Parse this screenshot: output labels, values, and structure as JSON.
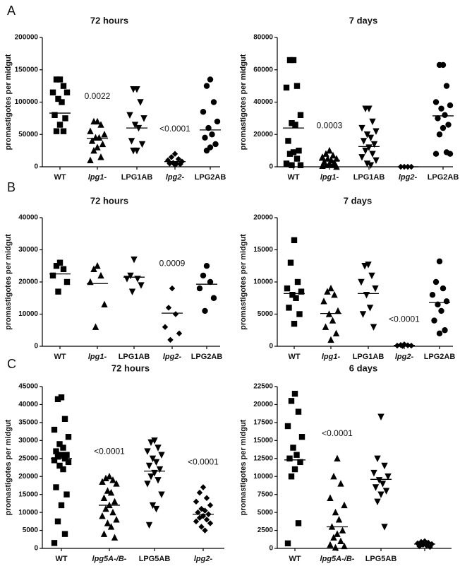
{
  "chart_data": [
    {
      "type": "dot",
      "panel_label": "A",
      "title": "72 hours",
      "y_label": "promastigotes per midgut",
      "color": "#000000",
      "categories": [
        "WT",
        "lpg1-",
        "LPG1AB",
        "lpg2-",
        "LPG2AB"
      ],
      "markers": [
        "square",
        "triangle-up",
        "triangle-down",
        "diamond",
        "circle"
      ],
      "values": [
        [
          135000,
          135000,
          125000,
          115000,
          115000,
          105000,
          100000,
          80000,
          75000,
          65000,
          55000,
          55000
        ],
        [
          70000,
          70000,
          65000,
          55000,
          50000,
          45000,
          45000,
          40000,
          35000,
          30000,
          25000,
          15000,
          10000
        ],
        [
          120000,
          120000,
          100000,
          80000,
          75000,
          65000,
          60000,
          40000,
          35000,
          25000,
          25000
        ],
        [
          20000,
          15000,
          12000,
          10000,
          8000,
          6000,
          5000,
          5000,
          4000,
          3000
        ],
        [
          135000,
          125000,
          100000,
          85000,
          70000,
          60000,
          50000,
          45000,
          35000,
          30000,
          25000
        ]
      ],
      "means": [
        83000,
        44000,
        60000,
        8000,
        57000
      ],
      "p_values": [
        null,
        "0.0022",
        null,
        "<0.0001",
        null
      ],
      "ylim": [
        0,
        200000
      ],
      "yticks": [
        0,
        50000,
        100000,
        150000,
        200000
      ]
    },
    {
      "type": "dot",
      "title": "7 days",
      "y_label": "promastigotes per midgut",
      "color": "#000000",
      "categories": [
        "WT",
        "lpg1-",
        "LPG1AB",
        "lpg2-",
        "LPG2AB"
      ],
      "markers": [
        "square",
        "triangle-up",
        "triangle-down",
        "diamond",
        "circle"
      ],
      "values": [
        [
          66000,
          66000,
          50000,
          49000,
          32000,
          27000,
          26000,
          16000,
          10000,
          9000,
          8000,
          5000,
          2000,
          1000,
          1000
        ],
        [
          10000,
          8000,
          7000,
          6000,
          5000,
          5000,
          4000,
          3000,
          2000,
          2000,
          1000,
          1000,
          500,
          0
        ],
        [
          36000,
          36000,
          28000,
          24000,
          22000,
          20000,
          18000,
          16000,
          14000,
          12000,
          10000,
          8000,
          6000,
          4000,
          2000,
          1000
        ],
        [
          0,
          0,
          0,
          0
        ],
        [
          63000,
          63000,
          50000,
          40000,
          38000,
          36000,
          32000,
          30000,
          26000,
          24000,
          20000,
          9000,
          8000,
          8000
        ]
      ],
      "means": [
        24000,
        4000,
        12500,
        0,
        31500
      ],
      "p_values": [
        null,
        "0.0003",
        null,
        null,
        null
      ],
      "ylim": [
        0,
        80000
      ],
      "yticks": [
        0,
        20000,
        40000,
        60000,
        80000
      ]
    },
    {
      "type": "dot",
      "panel_label": "B",
      "title": "72 hours",
      "y_label": "promastigotes per midgut",
      "color": "#000000",
      "categories": [
        "WT",
        "lpg1-",
        "LPG1AB",
        "lpg2-",
        "LPG2AB"
      ],
      "markers": [
        "square",
        "triangle-up",
        "triangle-down",
        "diamond",
        "circle"
      ],
      "values": [
        [
          26000,
          25000,
          24000,
          22000,
          20000,
          17000
        ],
        [
          25000,
          24000,
          22000,
          20000,
          13000,
          6000
        ],
        [
          27000,
          22000,
          21000,
          21000,
          19000,
          17000
        ],
        [
          18000,
          12000,
          10000,
          6000,
          4000,
          2000
        ],
        [
          25000,
          22000,
          20000,
          18000,
          15000,
          11000
        ]
      ],
      "means": [
        22500,
        19500,
        21500,
        10300,
        19300
      ],
      "p_values": [
        null,
        null,
        null,
        "0.0009",
        null
      ],
      "ylim": [
        0,
        40000
      ],
      "yticks": [
        0,
        10000,
        20000,
        30000,
        40000
      ]
    },
    {
      "type": "dot",
      "title": "7 days",
      "y_label": "promastigotes per midgut",
      "color": "#000000",
      "categories": [
        "WT",
        "lpg1-",
        "LPG1AB",
        "lpg2-",
        "LPG2AB"
      ],
      "markers": [
        "square",
        "triangle-up",
        "triangle-down",
        "diamond",
        "circle"
      ],
      "values": [
        [
          16500,
          13000,
          10000,
          9000,
          8500,
          8000,
          7500,
          6000,
          5000,
          3500
        ],
        [
          9000,
          8500,
          8000,
          7000,
          5500,
          5000,
          4000,
          3000,
          2000,
          1000
        ],
        [
          12700,
          12500,
          11000,
          10000,
          9000,
          8000,
          6000,
          5000,
          3000
        ],
        [
          300,
          200,
          150,
          100,
          100,
          50
        ],
        [
          13200,
          10000,
          9000,
          8000,
          7000,
          6500,
          5500,
          4000,
          2500,
          2000
        ]
      ],
      "means": [
        8200,
        5100,
        8200,
        150,
        6800
      ],
      "p_values": [
        null,
        null,
        null,
        "<0.0001",
        null
      ],
      "ylim": [
        0,
        20000
      ],
      "yticks": [
        0,
        5000,
        10000,
        15000,
        20000
      ]
    },
    {
      "type": "dot",
      "panel_label": "C",
      "title": "72 hours",
      "y_label": "promastigotes per midgut",
      "color": "#000000",
      "categories": [
        "WT",
        "lpg5A-/B-",
        "LPG5AB",
        "lpg2-"
      ],
      "markers": [
        "square",
        "triangle-up",
        "triangle-down",
        "diamond"
      ],
      "values": [
        [
          42000,
          41500,
          36000,
          33000,
          31000,
          29000,
          28000,
          27000,
          26000,
          26000,
          25500,
          25000,
          24500,
          24000,
          23000,
          22000,
          17000,
          15000,
          12000,
          7500,
          4000,
          1500
        ],
        [
          20000,
          19500,
          19000,
          18500,
          18000,
          16000,
          15500,
          14000,
          13000,
          12000,
          11000,
          10000,
          9000,
          8000,
          7000,
          6000,
          4000,
          3000
        ],
        [
          30000,
          29500,
          28000,
          27000,
          26000,
          25000,
          24000,
          23000,
          22000,
          21000,
          20000,
          19000,
          18000,
          15000,
          12000,
          11000,
          6500
        ],
        [
          17000,
          15500,
          14000,
          13000,
          12000,
          11000,
          10500,
          10000,
          9500,
          9000,
          8500,
          8000,
          7500,
          7000,
          6000,
          5000
        ]
      ],
      "means": [
        25000,
        12000,
        21500,
        9500
      ],
      "p_values": [
        null,
        "<0.0001",
        null,
        "<0.0001"
      ],
      "ylim": [
        0,
        45000
      ],
      "yticks": [
        0,
        5000,
        10000,
        15000,
        20000,
        25000,
        30000,
        35000,
        40000,
        45000
      ]
    },
    {
      "type": "dot",
      "title": "6 days",
      "y_label": "promastigotes per midgut",
      "color": "#000000",
      "categories": [
        "WT",
        "lpg5A-/B-",
        "LPG5AB",
        null
      ],
      "markers": [
        "square",
        "triangle-up",
        "triangle-down",
        "diamond"
      ],
      "values": [
        [
          21500,
          20500,
          19000,
          17000,
          15500,
          14000,
          13000,
          12500,
          12000,
          11000,
          10000,
          3500,
          700
        ],
        [
          12500,
          10000,
          9000,
          7000,
          6000,
          5000,
          4000,
          3000,
          2500,
          2000,
          1500,
          1000,
          500,
          300,
          100
        ],
        [
          18300,
          12500,
          11500,
          10500,
          10000,
          9500,
          9000,
          8500,
          8000,
          7500,
          6500,
          3000
        ],
        [
          1000,
          900,
          800,
          700,
          600,
          500,
          400,
          300,
          200
        ]
      ],
      "means": [
        12300,
        3000,
        9600,
        600
      ],
      "p_values": [
        null,
        "<0.0001",
        null,
        null
      ],
      "ylim": [
        0,
        22500
      ],
      "yticks": [
        0,
        2500,
        5000,
        7500,
        10000,
        12500,
        15000,
        17500,
        20000,
        22500
      ]
    }
  ]
}
